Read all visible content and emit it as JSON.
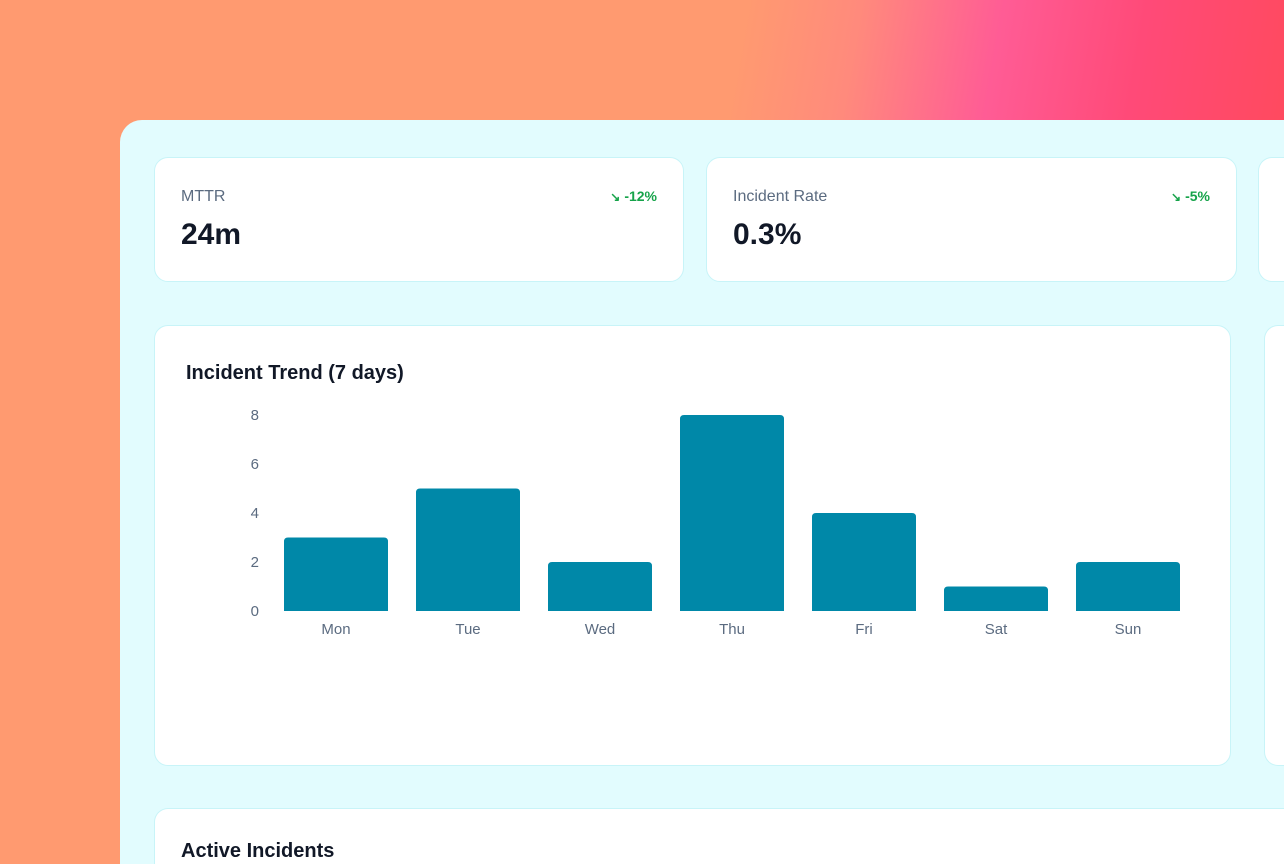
{
  "kpis": [
    {
      "label": "MTTR",
      "value": "24m",
      "delta": "-12%",
      "delta_icon": "trending-down-icon"
    },
    {
      "label": "Incident Rate",
      "value": "0.3%",
      "delta": "-5%",
      "delta_icon": "trending-down-icon"
    }
  ],
  "colors": {
    "bar": "#0088a8",
    "positive_delta": "#16a34a",
    "panel_bg": "#e2fcfe"
  },
  "chart_data": {
    "type": "bar",
    "title": "Incident Trend (7 days)",
    "categories": [
      "Mon",
      "Tue",
      "Wed",
      "Thu",
      "Fri",
      "Sat",
      "Sun"
    ],
    "values": [
      3,
      5,
      2,
      8,
      4,
      1,
      2
    ],
    "yticks": [
      "0",
      "2",
      "4",
      "6",
      "8"
    ],
    "ylim": [
      0,
      8
    ],
    "grid": false,
    "xlabel": "",
    "ylabel": ""
  },
  "active_incidents": {
    "title": "Active Incidents"
  }
}
